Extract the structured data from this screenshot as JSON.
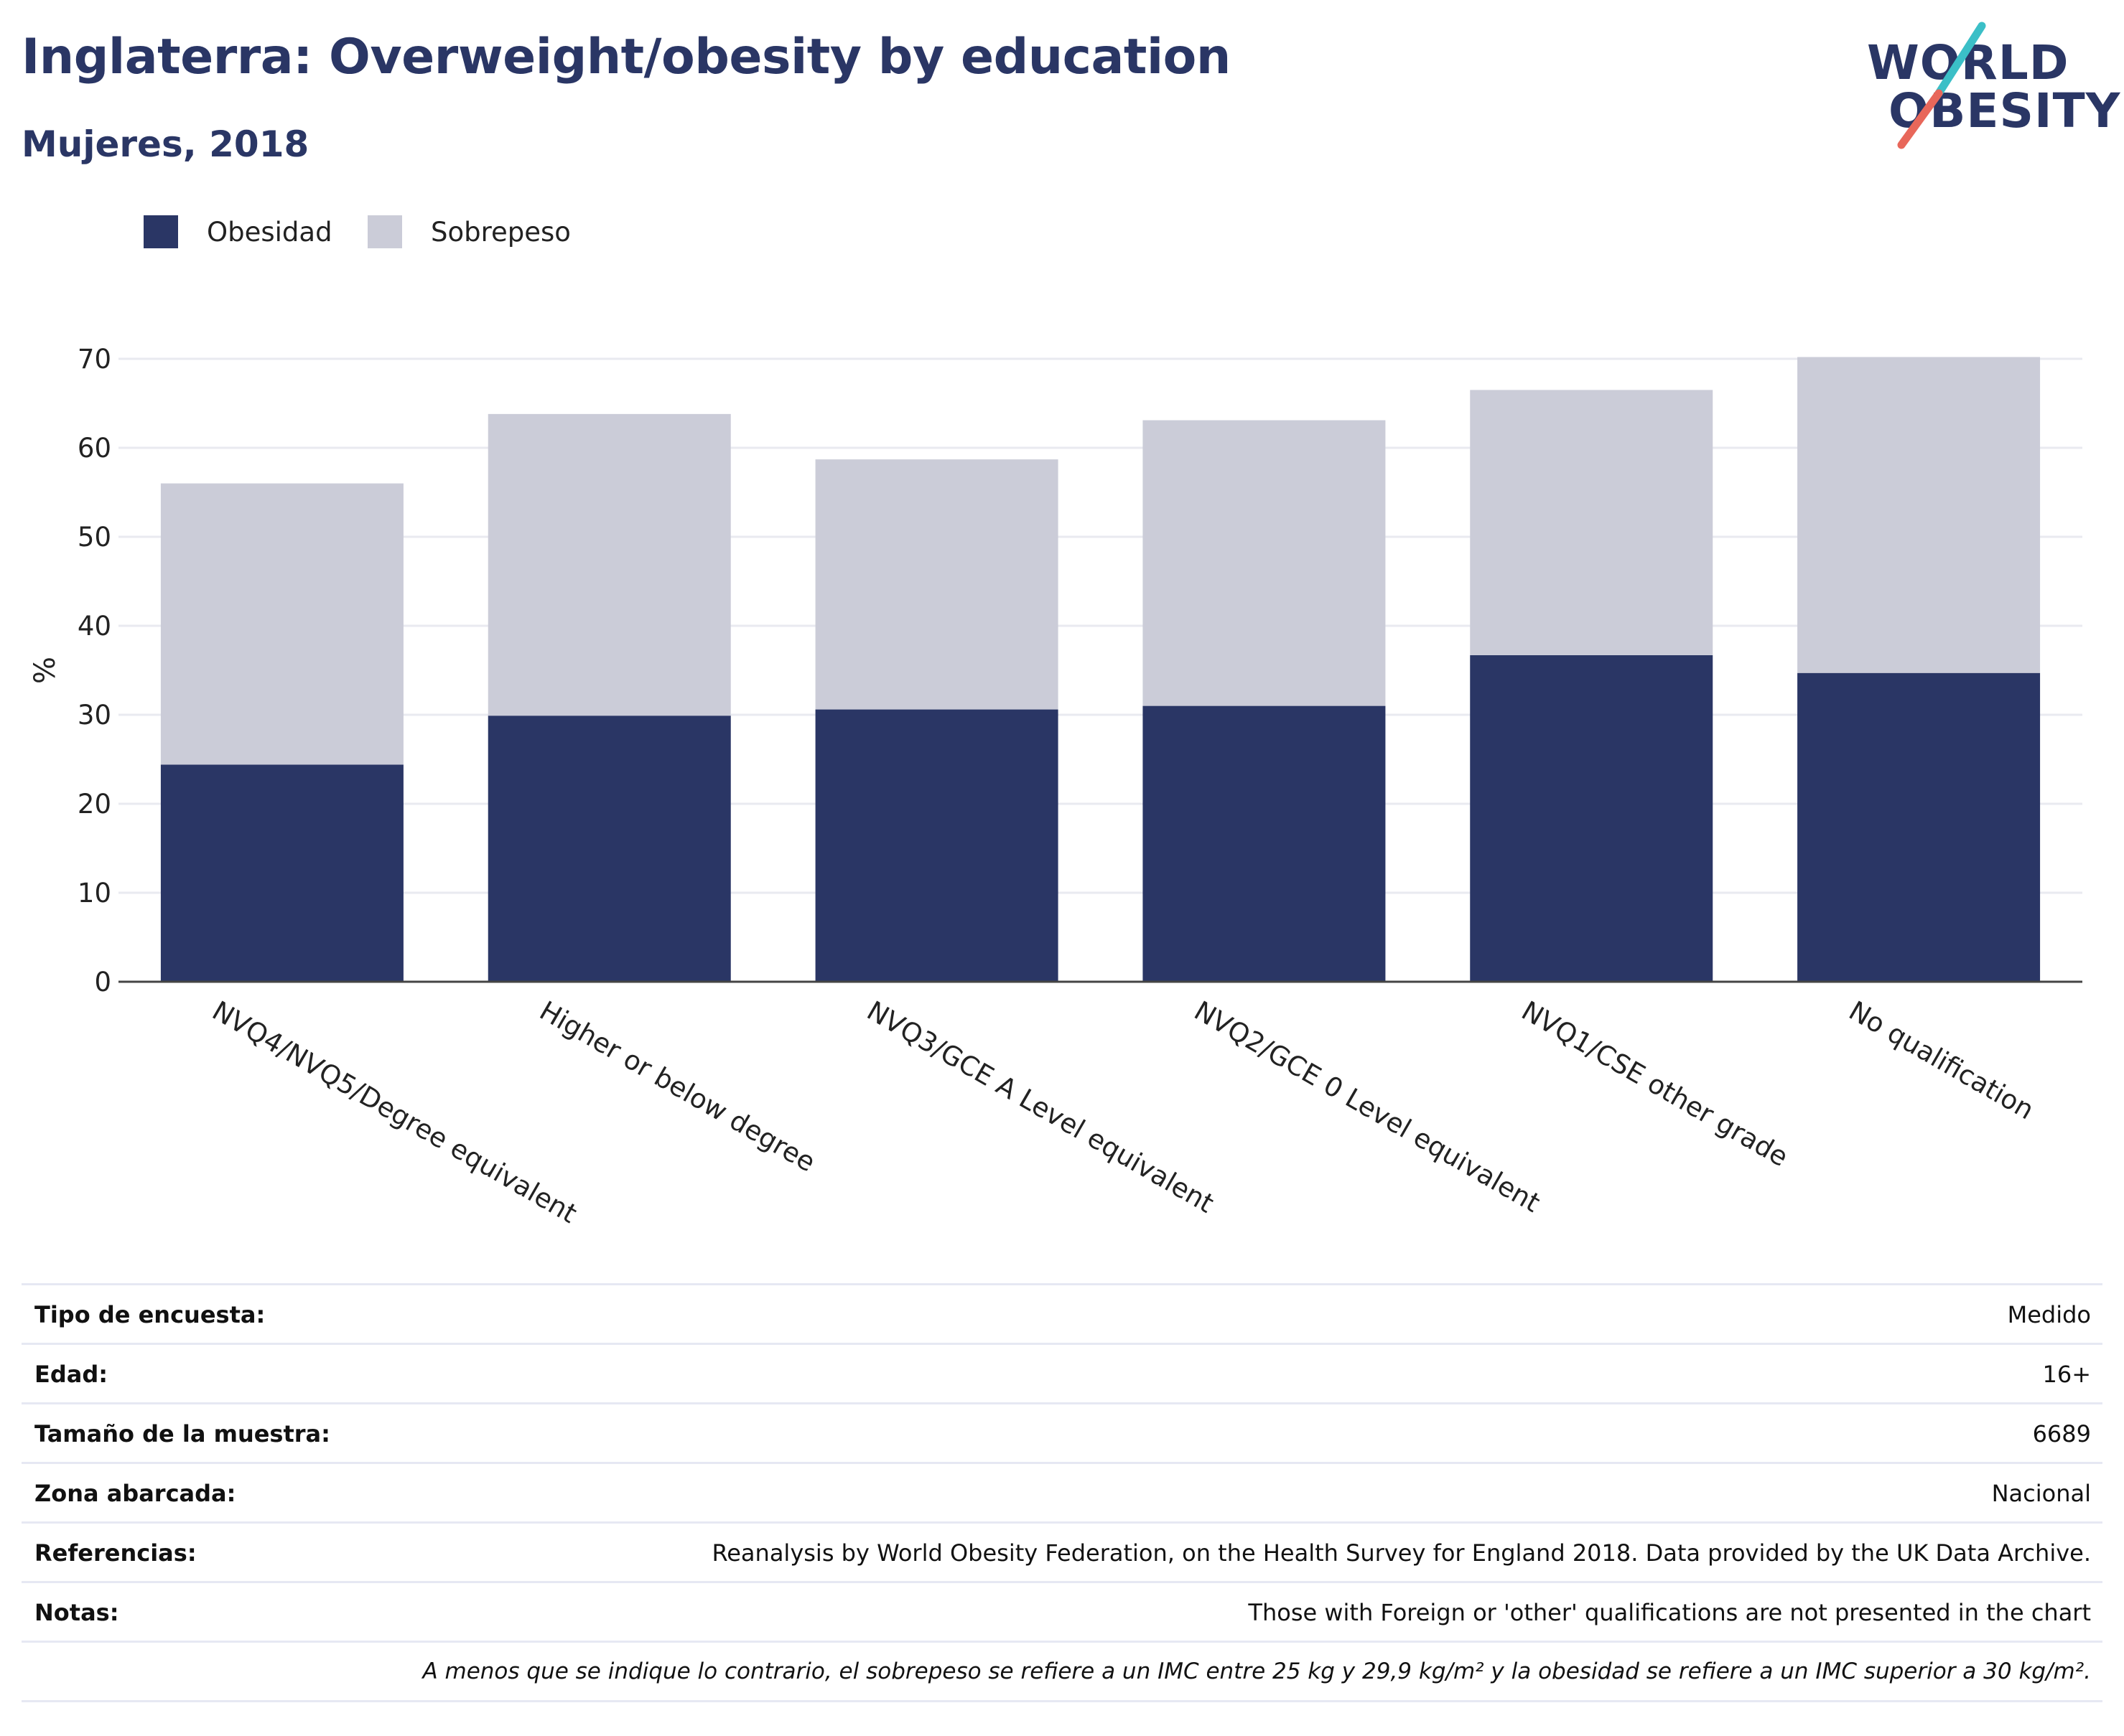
{
  "header": {
    "title": "Inglaterra: Overweight/obesity by education",
    "subtitle": "Mujeres, 2018"
  },
  "logo": {
    "line1": "WORLD",
    "line2": "OBESITY",
    "colors": {
      "text": "#2a3665",
      "slash_top": "#3bbfc7",
      "slash_bottom": "#e8675a"
    }
  },
  "colors": {
    "obesity": "#2a3665",
    "overweight": "#cbccd8",
    "title": "#2a3665",
    "grid": "#e9eaf0",
    "axis": "#444444"
  },
  "chart_data": {
    "type": "bar",
    "stacked": true,
    "categories": [
      "NVQ4/NVQ5/Degree equivalent",
      "Higher or below degree",
      "NVQ3/GCE A Level equivalent",
      "NVQ2/GCE 0 Level equivalent",
      "NVQ1/CSE other grade",
      "No qualification"
    ],
    "series": [
      {
        "name": "Obesidad",
        "values": [
          24.4,
          29.9,
          30.6,
          31.0,
          36.7,
          34.7
        ]
      },
      {
        "name": "Sobrepeso",
        "values": [
          31.6,
          33.9,
          28.1,
          32.1,
          29.8,
          35.5
        ]
      }
    ],
    "totals": [
      56.0,
      63.8,
      58.7,
      63.1,
      66.5,
      70.2
    ],
    "ylabel": "%",
    "ylim": [
      0,
      70
    ],
    "yticks": [
      0,
      10,
      20,
      30,
      40,
      50,
      60,
      70
    ],
    "grid": true,
    "legend_position": "top-left"
  },
  "meta": [
    {
      "key": "Tipo de encuesta:",
      "value": "Medido"
    },
    {
      "key": "Edad:",
      "value": "16+"
    },
    {
      "key": "Tamaño de la muestra:",
      "value": "6689"
    },
    {
      "key": "Zona abarcada:",
      "value": "Nacional"
    },
    {
      "key": "Referencias:",
      "value": "Reanalysis by World Obesity Federation, on the Health Survey for England 2018. Data provided by the UK Data Archive."
    },
    {
      "key": "Notas:",
      "value": "Those with Foreign or 'other' qualifications are not presented in the chart"
    }
  ],
  "footnote": "A menos que se indique lo contrario, el sobrepeso se refiere a un IMC entre 25 kg y 29,9 kg/m² y la obesidad se refiere a un IMC superior a 30 kg/m²."
}
